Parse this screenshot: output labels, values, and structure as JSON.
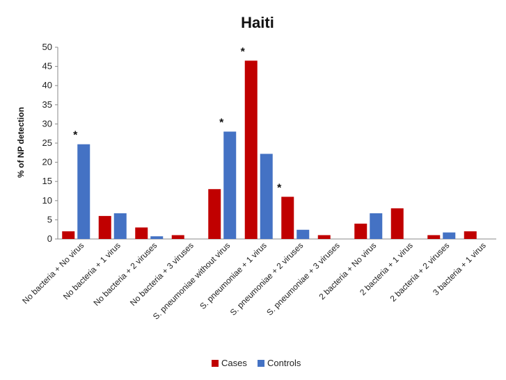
{
  "chart_data": {
    "type": "bar",
    "title": "Haiti",
    "ylabel": "% of NP detection",
    "xlabel": "",
    "ylim": [
      0,
      50
    ],
    "yticks": [
      0,
      5,
      10,
      15,
      20,
      25,
      30,
      35,
      40,
      45,
      50
    ],
    "grid": false,
    "legend_position": "bottom",
    "categories": [
      "No bacteria + No virus",
      "No bacteria + 1 virus",
      "No bacteria + 2 viruses",
      "No bacteria + 3 viruses",
      "S. pneumoniae without virus",
      "S. pneumoniae + 1 virus",
      "S. pneumoniae + 2 viruses",
      "S. pneumoniae + 3 viruses",
      "2 bacteria + No virus",
      "2 bacteria + 1 virus",
      "2 bacteria + 2 viruses",
      "3 bacteria + 1 virus"
    ],
    "series": [
      {
        "name": "Cases",
        "color": "#C00000",
        "values": [
          2,
          6,
          3,
          1,
          13,
          46.5,
          11,
          1,
          4,
          8,
          1,
          2
        ]
      },
      {
        "name": "Controls",
        "color": "#4472C4",
        "values": [
          24.7,
          6.7,
          0.7,
          0,
          28,
          22.2,
          2.4,
          0,
          6.7,
          0,
          1.7,
          0
        ]
      }
    ],
    "annotations": [
      {
        "category": "No bacteria + No virus",
        "text": "*"
      },
      {
        "category": "S. pneumoniae without virus",
        "text": "*"
      },
      {
        "category": "S. pneumoniae + 1 virus",
        "text": "*"
      },
      {
        "category": "S. pneumoniae + 2 viruses",
        "text": "*"
      }
    ]
  }
}
